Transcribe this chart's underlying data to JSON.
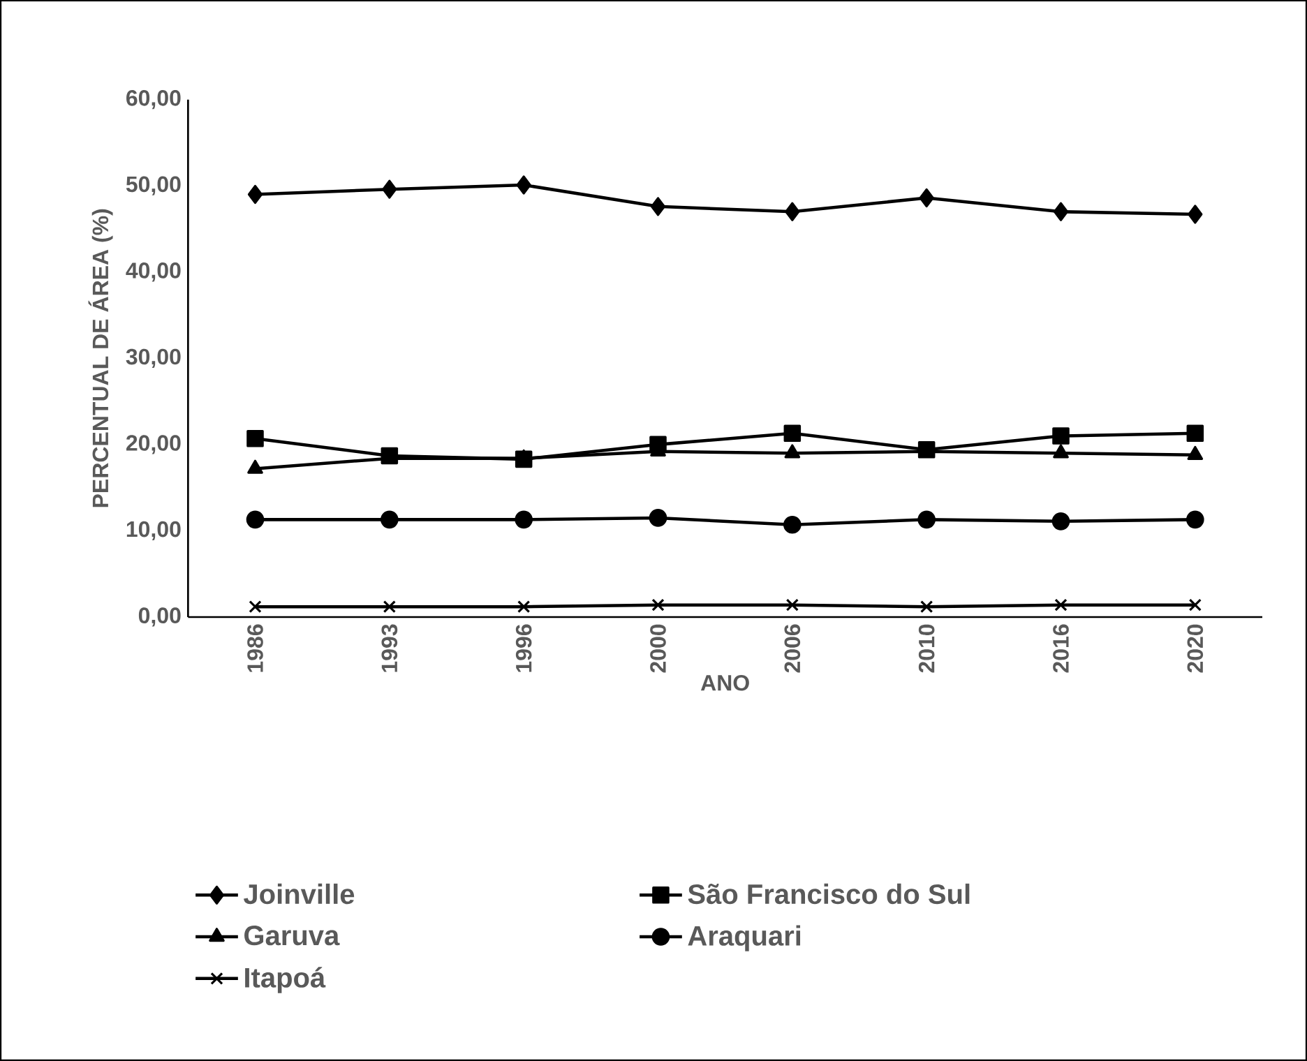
{
  "chart_data": {
    "type": "line",
    "xlabel": "ANO",
    "ylabel": "PERCENTUAL DE ÁREA (%)",
    "categories": [
      "1986",
      "1993",
      "1996",
      "2000",
      "2006",
      "2010",
      "2016",
      "2020"
    ],
    "ylim": [
      0,
      60
    ],
    "yticks": [
      {
        "value": 0,
        "label": "0,00"
      },
      {
        "value": 10,
        "label": "10,00"
      },
      {
        "value": 20,
        "label": "20,00"
      },
      {
        "value": 30,
        "label": "30,00"
      },
      {
        "value": 40,
        "label": "40,00"
      },
      {
        "value": 50,
        "label": "50,00"
      },
      {
        "value": 60,
        "label": "60,00"
      }
    ],
    "grid": false,
    "legend": "bottom",
    "line_style": "solid",
    "series": [
      {
        "name": "Joinville",
        "color": "#000000",
        "marker": "diamond",
        "values": [
          49.0,
          49.6,
          50.1,
          47.6,
          47.0,
          48.6,
          47.0,
          46.7
        ]
      },
      {
        "name": "São Francisco do Sul",
        "color": "#000000",
        "marker": "square",
        "values": [
          20.7,
          18.7,
          18.3,
          20.0,
          21.3,
          19.4,
          21.0,
          21.3
        ]
      },
      {
        "name": "Garuva",
        "color": "#000000",
        "marker": "triangle",
        "values": [
          17.2,
          18.4,
          18.4,
          19.2,
          19.0,
          19.2,
          19.0,
          18.8
        ]
      },
      {
        "name": "Araquari",
        "color": "#000000",
        "marker": "circle",
        "values": [
          11.3,
          11.3,
          11.3,
          11.5,
          10.7,
          11.3,
          11.1,
          11.3
        ]
      },
      {
        "name": "Itapoá",
        "color": "#000000",
        "marker": "cross",
        "values": [
          1.2,
          1.2,
          1.2,
          1.4,
          1.4,
          1.2,
          1.4,
          1.4
        ]
      }
    ]
  }
}
